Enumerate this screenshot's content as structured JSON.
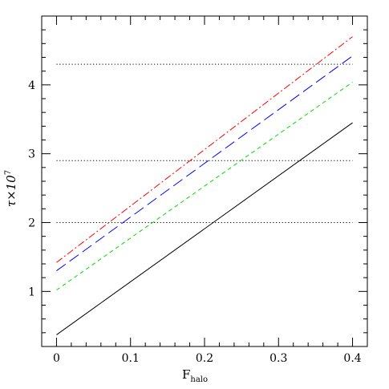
{
  "chart_data": {
    "type": "line",
    "xlabel_main": "F",
    "xlabel_sub": "halo",
    "ylabel_main": "τ×10",
    "ylabel_sup": "7",
    "xlim": [
      -0.02,
      0.42
    ],
    "ylim": [
      0.2,
      5.0
    ],
    "xticks": [
      0,
      0.1,
      0.2,
      0.3,
      0.4
    ],
    "xtick_labels": [
      "0",
      "0.1",
      "0.2",
      "0.3",
      "0.4"
    ],
    "yticks": [
      1,
      2,
      3,
      4
    ],
    "ytick_labels": [
      "1",
      "2",
      "3",
      "4"
    ],
    "grid": false,
    "series": [
      {
        "color": "#000000",
        "dash": "solid",
        "x": [
          0,
          0.4
        ],
        "y": [
          0.37,
          3.45
        ]
      },
      {
        "color": "#00dd00",
        "dash": "short-dash",
        "x": [
          0,
          0.4
        ],
        "y": [
          1.02,
          4.04
        ]
      },
      {
        "color": "#0000ff",
        "dash": "long-dash",
        "x": [
          0,
          0.4
        ],
        "y": [
          1.3,
          4.42
        ]
      },
      {
        "color": "#ff0000",
        "dash": "dash-dot",
        "x": [
          0,
          0.4
        ],
        "y": [
          1.42,
          4.7
        ]
      }
    ],
    "reference_lines": [
      {
        "y": 2.0,
        "x": [
          0,
          0.4
        ],
        "style": "dotted",
        "color": "#000000"
      },
      {
        "y": 2.9,
        "x": [
          0,
          0.4
        ],
        "style": "dotted",
        "color": "#000000"
      },
      {
        "y": 4.3,
        "x": [
          0,
          0.4
        ],
        "style": "dotted",
        "color": "#000000"
      }
    ]
  }
}
